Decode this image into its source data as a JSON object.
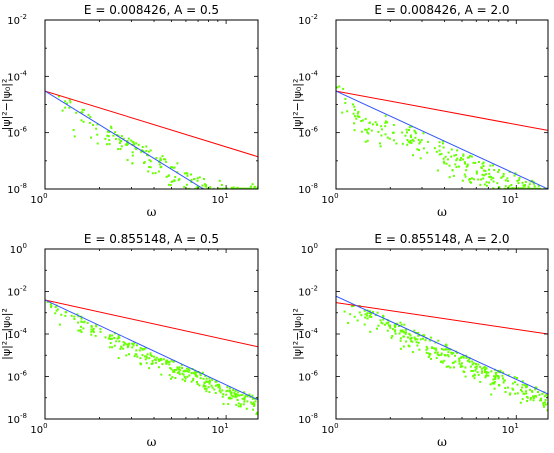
{
  "figure": {
    "background": "#ffffff"
  },
  "chart_data": [
    {
      "type": "scatter",
      "title": "E = 0.008426, A = 0.5",
      "xlabel": "ω",
      "ylabel": "|ψ|²−|ψ₀|²",
      "xscale": "log",
      "yscale": "log",
      "xlim": [
        1,
        15
      ],
      "ylim": [
        1e-08,
        0.01
      ],
      "xticks": [
        1,
        10
      ],
      "xtick_labels": [
        {
          "base": "10",
          "exp": "0"
        },
        {
          "base": "10",
          "exp": "1"
        }
      ],
      "yticks": [
        1e-08,
        1e-06,
        0.0001,
        0.01
      ],
      "ytick_labels": [
        {
          "base": "10",
          "exp": "-8"
        },
        {
          "base": "10",
          "exp": "-6"
        },
        {
          "base": "10",
          "exp": "-4"
        },
        {
          "base": "10",
          "exp": "-2"
        }
      ],
      "grid": false,
      "series": [
        {
          "kind": "line",
          "color": "#ff0000",
          "x": [
            1,
            15
          ],
          "y": [
            3e-05,
            1.4e-07
          ]
        },
        {
          "kind": "line",
          "color": "#3355ff",
          "x": [
            1,
            7.5
          ],
          "y": [
            3e-05,
            1e-08
          ]
        },
        {
          "kind": "scatter",
          "color": "#66ff00",
          "trend": [
            [
              1,
              0.0001
            ],
            [
              1.5,
              1e-05
            ],
            [
              2,
              2e-06
            ],
            [
              3,
              5e-07
            ],
            [
              5,
              8e-08
            ],
            [
              8,
              1.5e-08
            ],
            [
              15,
              1e-08
            ]
          ],
          "count": 220,
          "spread_log10": 0.5,
          "seed": 11
        }
      ]
    },
    {
      "type": "scatter",
      "title": "E = 0.008426, A = 2.0",
      "xlabel": "ω",
      "ylabel": "|ψ|²−|ψ₀|²",
      "xscale": "log",
      "yscale": "log",
      "xlim": [
        1,
        15
      ],
      "ylim": [
        1e-08,
        0.01
      ],
      "xticks": [
        1,
        10
      ],
      "xtick_labels": [
        {
          "base": "10",
          "exp": "0"
        },
        {
          "base": "10",
          "exp": "1"
        }
      ],
      "yticks": [
        1e-08,
        1e-06,
        0.0001,
        0.01
      ],
      "ytick_labels": [
        {
          "base": "10",
          "exp": "-8"
        },
        {
          "base": "10",
          "exp": "-6"
        },
        {
          "base": "10",
          "exp": "-4"
        },
        {
          "base": "10",
          "exp": "-2"
        }
      ],
      "grid": false,
      "series": [
        {
          "kind": "line",
          "color": "#ff0000",
          "x": [
            1,
            15
          ],
          "y": [
            3e-05,
            1.2e-06
          ]
        },
        {
          "kind": "line",
          "color": "#3355ff",
          "x": [
            1,
            15
          ],
          "y": [
            3e-05,
            1e-08
          ]
        },
        {
          "kind": "scatter",
          "color": "#66ff00",
          "trend": [
            [
              1,
              0.0001
            ],
            [
              1.5,
              2e-06
            ],
            [
              2,
              3e-06
            ],
            [
              4,
              3e-07
            ],
            [
              8,
              4e-08
            ],
            [
              12,
              1.5e-08
            ],
            [
              15,
              1e-08
            ]
          ],
          "count": 260,
          "spread_log10": 0.6,
          "seed": 23
        }
      ]
    },
    {
      "type": "scatter",
      "title": "E = 0.855148, A = 0.5",
      "xlabel": "ω",
      "ylabel": "|ψ|²−|ψ₀|²",
      "xscale": "log",
      "yscale": "log",
      "xlim": [
        1,
        15
      ],
      "ylim": [
        1e-08,
        1
      ],
      "xticks": [
        1,
        10
      ],
      "xtick_labels": [
        {
          "base": "10",
          "exp": "0"
        },
        {
          "base": "10",
          "exp": "1"
        }
      ],
      "yticks": [
        1e-08,
        1e-06,
        0.0001,
        0.01,
        1
      ],
      "ytick_labels": [
        {
          "base": "10",
          "exp": "-8"
        },
        {
          "base": "10",
          "exp": "-6"
        },
        {
          "base": "10",
          "exp": "-4"
        },
        {
          "base": "10",
          "exp": "-2"
        },
        {
          "base": "10",
          "exp": "0"
        }
      ],
      "grid": false,
      "series": [
        {
          "kind": "line",
          "color": "#ff0000",
          "x": [
            1,
            15
          ],
          "y": [
            0.004,
            2.5e-05
          ]
        },
        {
          "kind": "line",
          "color": "#3355ff",
          "x": [
            1,
            15
          ],
          "y": [
            0.004,
            8e-08
          ]
        },
        {
          "kind": "scatter",
          "color": "#66ff00",
          "trend": [
            [
              1,
              0.004
            ],
            [
              2,
              0.0002
            ],
            [
              3,
              4e-05
            ],
            [
              5,
              5e-06
            ],
            [
              8,
              8e-07
            ],
            [
              12,
              1.5e-07
            ],
            [
              15,
              8e-08
            ]
          ],
          "count": 320,
          "spread_log10": 0.45,
          "seed": 37
        }
      ]
    },
    {
      "type": "scatter",
      "title": "E = 0.855148, A = 2.0",
      "xlabel": "ω",
      "ylabel": "|ψ|²−|ψ₀|²",
      "xscale": "log",
      "yscale": "log",
      "xlim": [
        1,
        15
      ],
      "ylim": [
        1e-08,
        1
      ],
      "xticks": [
        1,
        10
      ],
      "xtick_labels": [
        {
          "base": "10",
          "exp": "0"
        },
        {
          "base": "10",
          "exp": "1"
        }
      ],
      "yticks": [
        1e-08,
        1e-06,
        0.0001,
        0.01,
        1
      ],
      "ytick_labels": [
        {
          "base": "10",
          "exp": "-8"
        },
        {
          "base": "10",
          "exp": "-6"
        },
        {
          "base": "10",
          "exp": "-4"
        },
        {
          "base": "10",
          "exp": "-2"
        },
        {
          "base": "10",
          "exp": "0"
        }
      ],
      "grid": false,
      "series": [
        {
          "kind": "line",
          "color": "#ff0000",
          "x": [
            1,
            15
          ],
          "y": [
            0.003,
            0.0001
          ]
        },
        {
          "kind": "line",
          "color": "#3355ff",
          "x": [
            1,
            15
          ],
          "y": [
            0.006,
            1.5e-07
          ]
        },
        {
          "kind": "scatter",
          "color": "#66ff00",
          "trend": [
            [
              1,
              0.006
            ],
            [
              2,
              0.0004
            ],
            [
              3,
              8e-05
            ],
            [
              5,
              1e-05
            ],
            [
              8,
              1.5e-06
            ],
            [
              12,
              3e-07
            ],
            [
              15,
              1.5e-07
            ]
          ],
          "count": 340,
          "spread_log10": 0.55,
          "seed": 53
        }
      ]
    }
  ]
}
